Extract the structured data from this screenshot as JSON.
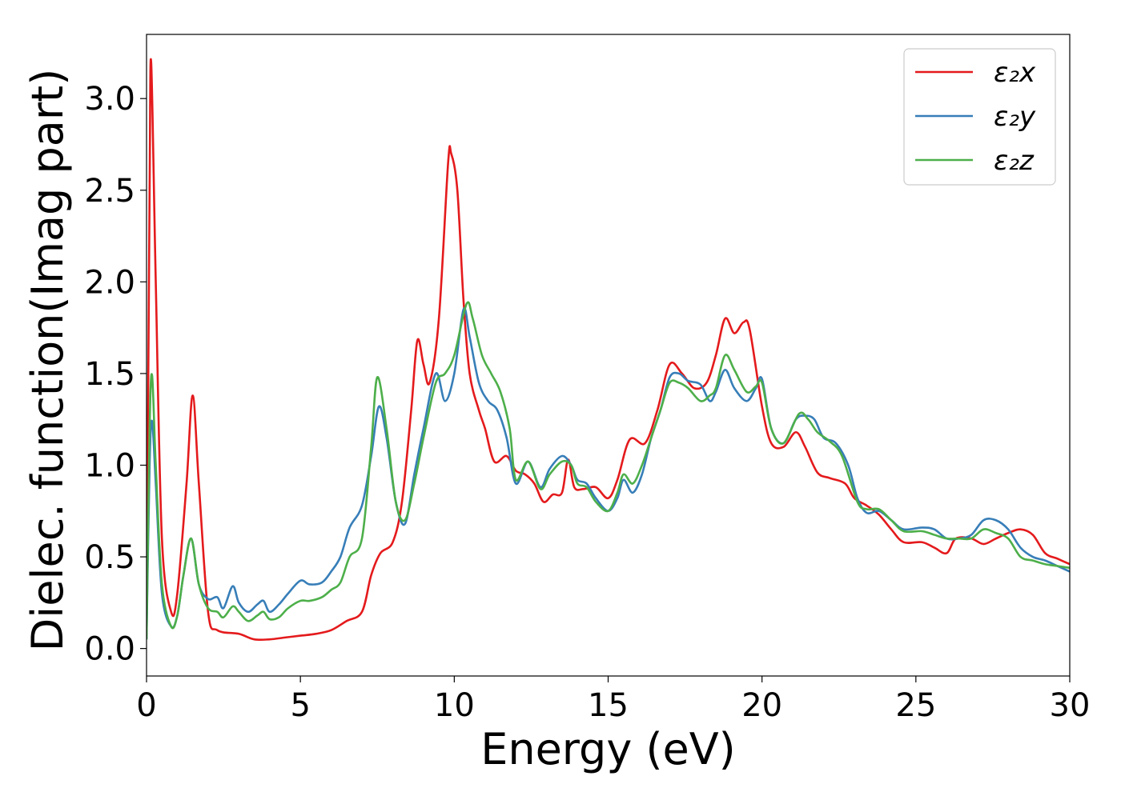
{
  "chart_data": {
    "type": "line",
    "title": "",
    "xlabel": "Energy (eV)",
    "ylabel": "Dielec. function(Imag part)",
    "xlim": [
      0,
      30
    ],
    "ylim": [
      -0.15,
      3.35
    ],
    "xticks": [
      0,
      5,
      10,
      15,
      20,
      25,
      30
    ],
    "xtick_labels": [
      "0",
      "5",
      "10",
      "15",
      "20",
      "25",
      "30"
    ],
    "yticks": [
      0.0,
      0.5,
      1.0,
      1.5,
      2.0,
      2.5,
      3.0
    ],
    "ytick_labels": [
      "0.0",
      "0.5",
      "1.0",
      "1.5",
      "2.0",
      "2.5",
      "3.0"
    ],
    "grid": false,
    "legend_position": "top-right",
    "series": [
      {
        "name": "ε₂x",
        "color": "#e41a1c",
        "points": [
          [
            0,
            0.1
          ],
          [
            0.1,
            2.5
          ],
          [
            0.15,
            3.2
          ],
          [
            0.3,
            2.0
          ],
          [
            0.5,
            0.6
          ],
          [
            0.8,
            0.2
          ],
          [
            1.0,
            0.3
          ],
          [
            1.3,
            0.9
          ],
          [
            1.5,
            1.38
          ],
          [
            1.7,
            0.9
          ],
          [
            2.0,
            0.2
          ],
          [
            2.3,
            0.1
          ],
          [
            3.0,
            0.08
          ],
          [
            3.5,
            0.05
          ],
          [
            4.0,
            0.05
          ],
          [
            4.5,
            0.06
          ],
          [
            5.0,
            0.07
          ],
          [
            5.5,
            0.08
          ],
          [
            6.0,
            0.1
          ],
          [
            6.5,
            0.15
          ],
          [
            7.0,
            0.2
          ],
          [
            7.3,
            0.4
          ],
          [
            7.6,
            0.52
          ],
          [
            8.0,
            0.58
          ],
          [
            8.3,
            0.8
          ],
          [
            8.6,
            1.3
          ],
          [
            8.8,
            1.68
          ],
          [
            9.0,
            1.55
          ],
          [
            9.2,
            1.45
          ],
          [
            9.5,
            1.8
          ],
          [
            9.8,
            2.65
          ],
          [
            9.9,
            2.7
          ],
          [
            10.1,
            2.5
          ],
          [
            10.3,
            1.9
          ],
          [
            10.5,
            1.5
          ],
          [
            10.8,
            1.3
          ],
          [
            11.0,
            1.2
          ],
          [
            11.3,
            1.02
          ],
          [
            11.7,
            1.05
          ],
          [
            12.0,
            0.97
          ],
          [
            12.3,
            0.95
          ],
          [
            12.6,
            0.9
          ],
          [
            12.9,
            0.8
          ],
          [
            13.2,
            0.84
          ],
          [
            13.5,
            0.85
          ],
          [
            13.7,
            1.03
          ],
          [
            13.9,
            0.88
          ],
          [
            14.2,
            0.87
          ],
          [
            14.6,
            0.88
          ],
          [
            15.0,
            0.82
          ],
          [
            15.3,
            0.92
          ],
          [
            15.7,
            1.14
          ],
          [
            16.2,
            1.12
          ],
          [
            16.6,
            1.3
          ],
          [
            17.0,
            1.55
          ],
          [
            17.4,
            1.5
          ],
          [
            17.8,
            1.42
          ],
          [
            18.2,
            1.45
          ],
          [
            18.5,
            1.6
          ],
          [
            18.8,
            1.8
          ],
          [
            19.1,
            1.72
          ],
          [
            19.4,
            1.78
          ],
          [
            19.6,
            1.74
          ],
          [
            20.0,
            1.32
          ],
          [
            20.3,
            1.12
          ],
          [
            20.7,
            1.1
          ],
          [
            21.1,
            1.18
          ],
          [
            21.4,
            1.1
          ],
          [
            21.8,
            0.96
          ],
          [
            22.2,
            0.93
          ],
          [
            22.7,
            0.9
          ],
          [
            23.0,
            0.82
          ],
          [
            23.4,
            0.78
          ],
          [
            23.8,
            0.73
          ],
          [
            24.2,
            0.65
          ],
          [
            24.6,
            0.58
          ],
          [
            25.2,
            0.58
          ],
          [
            25.6,
            0.55
          ],
          [
            26.0,
            0.52
          ],
          [
            26.3,
            0.6
          ],
          [
            26.8,
            0.6
          ],
          [
            27.2,
            0.57
          ],
          [
            27.6,
            0.6
          ],
          [
            28.0,
            0.63
          ],
          [
            28.4,
            0.65
          ],
          [
            28.8,
            0.62
          ],
          [
            29.2,
            0.52
          ],
          [
            29.6,
            0.49
          ],
          [
            30.0,
            0.46
          ]
        ]
      },
      {
        "name": "ε₂y",
        "color": "#377eb8",
        "points": [
          [
            0,
            0.05
          ],
          [
            0.1,
            1.0
          ],
          [
            0.18,
            1.24
          ],
          [
            0.3,
            0.9
          ],
          [
            0.5,
            0.3
          ],
          [
            0.8,
            0.12
          ],
          [
            1.0,
            0.18
          ],
          [
            1.2,
            0.4
          ],
          [
            1.45,
            0.6
          ],
          [
            1.7,
            0.35
          ],
          [
            2.0,
            0.27
          ],
          [
            2.3,
            0.28
          ],
          [
            2.5,
            0.22
          ],
          [
            2.8,
            0.34
          ],
          [
            3.0,
            0.25
          ],
          [
            3.3,
            0.2
          ],
          [
            3.6,
            0.24
          ],
          [
            3.8,
            0.26
          ],
          [
            4.0,
            0.2
          ],
          [
            4.3,
            0.24
          ],
          [
            4.6,
            0.3
          ],
          [
            5.0,
            0.37
          ],
          [
            5.3,
            0.35
          ],
          [
            5.7,
            0.36
          ],
          [
            6.0,
            0.42
          ],
          [
            6.3,
            0.5
          ],
          [
            6.6,
            0.66
          ],
          [
            7.0,
            0.78
          ],
          [
            7.3,
            1.05
          ],
          [
            7.55,
            1.32
          ],
          [
            7.8,
            1.15
          ],
          [
            8.1,
            0.8
          ],
          [
            8.4,
            0.68
          ],
          [
            8.7,
            0.95
          ],
          [
            9.0,
            1.2
          ],
          [
            9.4,
            1.5
          ],
          [
            9.7,
            1.35
          ],
          [
            10.0,
            1.5
          ],
          [
            10.3,
            1.85
          ],
          [
            10.5,
            1.7
          ],
          [
            10.8,
            1.45
          ],
          [
            11.1,
            1.35
          ],
          [
            11.4,
            1.3
          ],
          [
            11.7,
            1.15
          ],
          [
            12.0,
            0.9
          ],
          [
            12.4,
            1.02
          ],
          [
            12.8,
            0.88
          ],
          [
            13.1,
            0.98
          ],
          [
            13.5,
            1.05
          ],
          [
            13.8,
            1.0
          ],
          [
            14.0,
            0.92
          ],
          [
            14.3,
            0.9
          ],
          [
            14.6,
            0.82
          ],
          [
            15.0,
            0.75
          ],
          [
            15.3,
            0.82
          ],
          [
            15.5,
            0.92
          ],
          [
            15.8,
            0.85
          ],
          [
            16.1,
            0.95
          ],
          [
            16.4,
            1.15
          ],
          [
            16.7,
            1.3
          ],
          [
            17.0,
            1.48
          ],
          [
            17.3,
            1.5
          ],
          [
            17.6,
            1.46
          ],
          [
            18.0,
            1.44
          ],
          [
            18.3,
            1.35
          ],
          [
            18.5,
            1.4
          ],
          [
            18.8,
            1.52
          ],
          [
            19.1,
            1.42
          ],
          [
            19.5,
            1.35
          ],
          [
            19.8,
            1.42
          ],
          [
            20.0,
            1.47
          ],
          [
            20.3,
            1.2
          ],
          [
            20.7,
            1.12
          ],
          [
            21.1,
            1.25
          ],
          [
            21.4,
            1.27
          ],
          [
            21.7,
            1.25
          ],
          [
            22.0,
            1.15
          ],
          [
            22.4,
            1.12
          ],
          [
            22.8,
            1.0
          ],
          [
            23.1,
            0.82
          ],
          [
            23.4,
            0.74
          ],
          [
            23.8,
            0.75
          ],
          [
            24.2,
            0.7
          ],
          [
            24.6,
            0.65
          ],
          [
            25.2,
            0.66
          ],
          [
            25.6,
            0.65
          ],
          [
            26.0,
            0.6
          ],
          [
            26.4,
            0.6
          ],
          [
            26.8,
            0.62
          ],
          [
            27.2,
            0.7
          ],
          [
            27.6,
            0.7
          ],
          [
            28.0,
            0.65
          ],
          [
            28.4,
            0.55
          ],
          [
            28.8,
            0.5
          ],
          [
            29.2,
            0.48
          ],
          [
            29.6,
            0.45
          ],
          [
            30.0,
            0.42
          ]
        ]
      },
      {
        "name": "ε₂z",
        "color": "#4daf4a",
        "points": [
          [
            0,
            0.05
          ],
          [
            0.1,
            1.2
          ],
          [
            0.18,
            1.49
          ],
          [
            0.3,
            1.0
          ],
          [
            0.5,
            0.35
          ],
          [
            0.8,
            0.12
          ],
          [
            1.0,
            0.18
          ],
          [
            1.2,
            0.4
          ],
          [
            1.45,
            0.6
          ],
          [
            1.7,
            0.35
          ],
          [
            2.0,
            0.22
          ],
          [
            2.3,
            0.2
          ],
          [
            2.5,
            0.17
          ],
          [
            2.8,
            0.23
          ],
          [
            3.0,
            0.2
          ],
          [
            3.3,
            0.15
          ],
          [
            3.6,
            0.18
          ],
          [
            3.8,
            0.2
          ],
          [
            4.0,
            0.16
          ],
          [
            4.3,
            0.17
          ],
          [
            4.6,
            0.22
          ],
          [
            5.0,
            0.26
          ],
          [
            5.3,
            0.26
          ],
          [
            5.7,
            0.28
          ],
          [
            6.0,
            0.32
          ],
          [
            6.3,
            0.36
          ],
          [
            6.6,
            0.5
          ],
          [
            7.0,
            0.6
          ],
          [
            7.3,
            1.1
          ],
          [
            7.5,
            1.48
          ],
          [
            7.8,
            1.2
          ],
          [
            8.1,
            0.8
          ],
          [
            8.4,
            0.7
          ],
          [
            8.7,
            0.9
          ],
          [
            9.0,
            1.15
          ],
          [
            9.4,
            1.45
          ],
          [
            9.7,
            1.5
          ],
          [
            10.0,
            1.6
          ],
          [
            10.4,
            1.88
          ],
          [
            10.6,
            1.8
          ],
          [
            10.9,
            1.6
          ],
          [
            11.2,
            1.5
          ],
          [
            11.5,
            1.4
          ],
          [
            11.8,
            1.2
          ],
          [
            12.0,
            0.92
          ],
          [
            12.4,
            1.02
          ],
          [
            12.8,
            0.87
          ],
          [
            13.1,
            0.95
          ],
          [
            13.5,
            1.02
          ],
          [
            13.8,
            1.0
          ],
          [
            14.0,
            0.9
          ],
          [
            14.3,
            0.88
          ],
          [
            14.6,
            0.8
          ],
          [
            15.0,
            0.75
          ],
          [
            15.3,
            0.85
          ],
          [
            15.5,
            0.95
          ],
          [
            15.8,
            0.9
          ],
          [
            16.1,
            1.0
          ],
          [
            16.4,
            1.15
          ],
          [
            16.7,
            1.3
          ],
          [
            17.0,
            1.45
          ],
          [
            17.3,
            1.45
          ],
          [
            17.6,
            1.42
          ],
          [
            18.0,
            1.35
          ],
          [
            18.3,
            1.38
          ],
          [
            18.5,
            1.42
          ],
          [
            18.8,
            1.6
          ],
          [
            19.1,
            1.52
          ],
          [
            19.5,
            1.4
          ],
          [
            19.8,
            1.43
          ],
          [
            20.0,
            1.45
          ],
          [
            20.3,
            1.2
          ],
          [
            20.7,
            1.12
          ],
          [
            21.2,
            1.28
          ],
          [
            21.5,
            1.25
          ],
          [
            21.8,
            1.18
          ],
          [
            22.2,
            1.13
          ],
          [
            22.6,
            1.05
          ],
          [
            23.1,
            0.8
          ],
          [
            23.4,
            0.76
          ],
          [
            23.8,
            0.76
          ],
          [
            24.2,
            0.7
          ],
          [
            24.6,
            0.64
          ],
          [
            25.2,
            0.64
          ],
          [
            25.6,
            0.62
          ],
          [
            26.0,
            0.6
          ],
          [
            26.4,
            0.6
          ],
          [
            26.8,
            0.6
          ],
          [
            27.2,
            0.65
          ],
          [
            27.6,
            0.63
          ],
          [
            28.0,
            0.6
          ],
          [
            28.4,
            0.5
          ],
          [
            28.8,
            0.48
          ],
          [
            29.2,
            0.46
          ],
          [
            29.6,
            0.45
          ],
          [
            30.0,
            0.44
          ]
        ]
      }
    ]
  }
}
